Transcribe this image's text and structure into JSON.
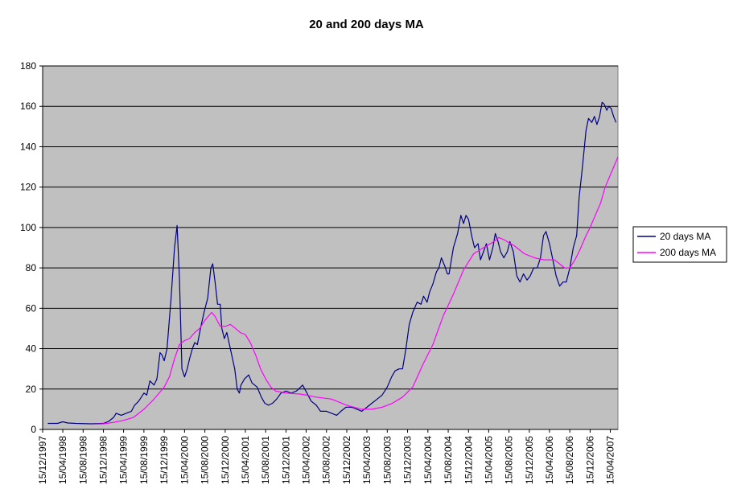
{
  "chart_data": {
    "type": "line",
    "title": "20 and 200 days MA",
    "xlabel": "",
    "ylabel": "",
    "ylim": [
      0,
      180
    ],
    "y_ticks": [
      0,
      20,
      40,
      60,
      80,
      100,
      120,
      140,
      160,
      180
    ],
    "x_tick_labels": [
      "15/12/1997",
      "15/04/1998",
      "15/08/1998",
      "15/12/1998",
      "15/04/1999",
      "15/08/1999",
      "15/12/1999",
      "15/04/2000",
      "15/08/2000",
      "15/12/2000",
      "15/04/2001",
      "15/08/2001",
      "15/12/2001",
      "15/04/2002",
      "15/08/2002",
      "15/12/2002",
      "15/04/2003",
      "15/08/2003",
      "15/12/2003",
      "15/04/2004",
      "15/08/2004",
      "15/12/2004",
      "15/04/2005",
      "15/08/2005",
      "15/12/2005",
      "15/04/2006",
      "15/08/2006",
      "15/12/2006",
      "15/04/2007"
    ],
    "xlim": [
      "1997-12-15",
      "2007-05-31"
    ],
    "grid": true,
    "legend_position": "right",
    "plot_background": "#C0C0C0",
    "series": [
      {
        "name": "20 days MA",
        "color": "#000080",
        "points": [
          [
            "1998-01-15",
            3
          ],
          [
            "1998-03-15",
            3
          ],
          [
            "1998-04-15",
            3.8
          ],
          [
            "1998-05-15",
            3.2
          ],
          [
            "1998-07-01",
            3
          ],
          [
            "1998-10-01",
            2.8
          ],
          [
            "1998-12-15",
            3
          ],
          [
            "1999-01-15",
            4
          ],
          [
            "1999-02-15",
            6
          ],
          [
            "1999-03-01",
            8
          ],
          [
            "1999-04-01",
            7
          ],
          [
            "1999-05-01",
            8
          ],
          [
            "1999-06-01",
            9
          ],
          [
            "1999-06-20",
            12
          ],
          [
            "1999-07-15",
            14
          ],
          [
            "1999-08-15",
            18
          ],
          [
            "1999-09-01",
            17
          ],
          [
            "1999-09-20",
            24
          ],
          [
            "1999-10-15",
            22
          ],
          [
            "1999-11-01",
            25
          ],
          [
            "1999-11-20",
            38
          ],
          [
            "1999-12-01",
            37
          ],
          [
            "1999-12-15",
            34
          ],
          [
            "2000-01-01",
            40
          ],
          [
            "2000-01-25",
            65
          ],
          [
            "2000-02-15",
            90
          ],
          [
            "2000-03-01",
            101
          ],
          [
            "2000-03-15",
            75
          ],
          [
            "2000-03-30",
            30
          ],
          [
            "2000-04-15",
            26
          ],
          [
            "2000-05-01",
            30
          ],
          [
            "2000-05-15",
            35
          ],
          [
            "2000-06-01",
            40
          ],
          [
            "2000-06-15",
            43
          ],
          [
            "2000-07-01",
            42
          ],
          [
            "2000-07-20",
            50
          ],
          [
            "2000-08-10",
            58
          ],
          [
            "2000-09-01",
            65
          ],
          [
            "2000-09-20",
            80
          ],
          [
            "2000-10-01",
            82
          ],
          [
            "2000-10-15",
            73
          ],
          [
            "2000-10-30",
            62
          ],
          [
            "2000-11-15",
            62
          ],
          [
            "2000-11-25",
            50
          ],
          [
            "2000-12-10",
            45
          ],
          [
            "2000-12-25",
            48
          ],
          [
            "2001-01-15",
            40
          ],
          [
            "2001-02-10",
            30
          ],
          [
            "2001-02-25",
            20
          ],
          [
            "2001-03-10",
            18
          ],
          [
            "2001-03-20",
            22
          ],
          [
            "2001-04-10",
            25
          ],
          [
            "2001-05-05",
            27
          ],
          [
            "2001-05-25",
            23
          ],
          [
            "2001-06-25",
            21
          ],
          [
            "2001-07-20",
            16
          ],
          [
            "2001-08-10",
            13
          ],
          [
            "2001-09-01",
            12
          ],
          [
            "2001-09-25",
            13
          ],
          [
            "2001-10-20",
            15
          ],
          [
            "2001-11-15",
            18
          ],
          [
            "2001-12-15",
            19
          ],
          [
            "2002-01-15",
            18
          ],
          [
            "2002-02-15",
            19
          ],
          [
            "2002-03-01",
            20
          ],
          [
            "2002-03-25",
            22
          ],
          [
            "2002-04-20",
            18
          ],
          [
            "2002-05-15",
            14
          ],
          [
            "2002-06-15",
            12
          ],
          [
            "2002-07-10",
            9
          ],
          [
            "2002-08-15",
            9
          ],
          [
            "2002-09-15",
            8
          ],
          [
            "2002-10-15",
            7
          ],
          [
            "2002-11-10",
            9
          ],
          [
            "2002-12-10",
            11
          ],
          [
            "2003-01-15",
            11
          ],
          [
            "2003-02-15",
            10
          ],
          [
            "2003-03-15",
            9
          ],
          [
            "2003-04-15",
            11
          ],
          [
            "2003-05-15",
            13
          ],
          [
            "2003-06-15",
            15
          ],
          [
            "2003-07-15",
            17
          ],
          [
            "2003-08-15",
            21
          ],
          [
            "2003-09-10",
            26
          ],
          [
            "2003-10-01",
            29
          ],
          [
            "2003-10-25",
            30
          ],
          [
            "2003-11-15",
            30
          ],
          [
            "2003-12-05",
            40
          ],
          [
            "2003-12-25",
            52
          ],
          [
            "2004-01-15",
            58
          ],
          [
            "2004-02-10",
            63
          ],
          [
            "2004-03-05",
            62
          ],
          [
            "2004-03-20",
            66
          ],
          [
            "2004-04-10",
            63
          ],
          [
            "2004-04-25",
            68
          ],
          [
            "2004-05-15",
            72
          ],
          [
            "2004-06-05",
            78
          ],
          [
            "2004-06-20",
            80
          ],
          [
            "2004-07-05",
            85
          ],
          [
            "2004-07-25",
            81
          ],
          [
            "2004-08-10",
            77
          ],
          [
            "2004-08-20",
            77
          ],
          [
            "2004-09-15",
            90
          ],
          [
            "2004-10-10",
            97
          ],
          [
            "2004-10-30",
            106
          ],
          [
            "2004-11-15",
            102
          ],
          [
            "2004-11-30",
            106
          ],
          [
            "2004-12-15",
            104
          ],
          [
            "2005-01-05",
            95
          ],
          [
            "2005-01-20",
            90
          ],
          [
            "2005-02-10",
            92
          ],
          [
            "2005-02-25",
            84
          ],
          [
            "2005-03-15",
            88
          ],
          [
            "2005-04-01",
            92
          ],
          [
            "2005-04-20",
            84
          ],
          [
            "2005-05-10",
            90
          ],
          [
            "2005-05-25",
            97
          ],
          [
            "2005-06-10",
            93
          ],
          [
            "2005-06-25",
            88
          ],
          [
            "2005-07-15",
            85
          ],
          [
            "2005-08-05",
            88
          ],
          [
            "2005-08-20",
            93
          ],
          [
            "2005-09-10",
            88
          ],
          [
            "2005-10-01",
            76
          ],
          [
            "2005-10-20",
            73
          ],
          [
            "2005-11-10",
            77
          ],
          [
            "2005-12-01",
            74
          ],
          [
            "2005-12-20",
            76
          ],
          [
            "2006-01-10",
            80
          ],
          [
            "2006-02-01",
            80
          ],
          [
            "2006-02-20",
            85
          ],
          [
            "2006-03-10",
            96
          ],
          [
            "2006-03-25",
            98
          ],
          [
            "2006-04-15",
            92
          ],
          [
            "2006-05-05",
            84
          ],
          [
            "2006-05-25",
            76
          ],
          [
            "2006-06-15",
            71
          ],
          [
            "2006-07-05",
            73
          ],
          [
            "2006-07-25",
            73
          ],
          [
            "2006-08-15",
            80
          ],
          [
            "2006-09-05",
            90
          ],
          [
            "2006-09-25",
            96
          ],
          [
            "2006-10-10",
            115
          ],
          [
            "2006-10-30",
            130
          ],
          [
            "2006-11-20",
            148
          ],
          [
            "2006-12-05",
            154
          ],
          [
            "2006-12-25",
            152
          ],
          [
            "2007-01-10",
            155
          ],
          [
            "2007-01-25",
            151
          ],
          [
            "2007-02-10",
            155
          ],
          [
            "2007-02-25",
            162
          ],
          [
            "2007-03-10",
            161
          ],
          [
            "2007-03-25",
            158
          ],
          [
            "2007-04-05",
            160
          ],
          [
            "2007-04-20",
            159
          ],
          [
            "2007-05-05",
            155
          ],
          [
            "2007-05-20",
            152
          ]
        ]
      },
      {
        "name": "200 days MA",
        "color": "#FF00FF",
        "points": [
          [
            "1998-10-01",
            2.5
          ],
          [
            "1998-12-15",
            2.8
          ],
          [
            "1999-02-15",
            3.5
          ],
          [
            "1999-04-15",
            4.5
          ],
          [
            "1999-06-15",
            6
          ],
          [
            "1999-08-15",
            10
          ],
          [
            "1999-10-15",
            15
          ],
          [
            "1999-12-15",
            21
          ],
          [
            "2000-01-15",
            26
          ],
          [
            "2000-02-15",
            35
          ],
          [
            "2000-03-15",
            42
          ],
          [
            "2000-04-15",
            44
          ],
          [
            "2000-05-15",
            45
          ],
          [
            "2000-06-15",
            48
          ],
          [
            "2000-07-15",
            50
          ],
          [
            "2000-08-15",
            54
          ],
          [
            "2000-09-15",
            57
          ],
          [
            "2000-09-25",
            58
          ],
          [
            "2000-10-15",
            56
          ],
          [
            "2000-11-15",
            51
          ],
          [
            "2000-12-15",
            51
          ],
          [
            "2001-01-15",
            52
          ],
          [
            "2001-02-15",
            50
          ],
          [
            "2001-03-15",
            48
          ],
          [
            "2001-04-15",
            47
          ],
          [
            "2001-05-15",
            43
          ],
          [
            "2001-06-15",
            37
          ],
          [
            "2001-07-15",
            30
          ],
          [
            "2001-08-15",
            25
          ],
          [
            "2001-09-15",
            21
          ],
          [
            "2001-10-15",
            19
          ],
          [
            "2001-11-15",
            18.5
          ],
          [
            "2001-12-15",
            18
          ],
          [
            "2002-03-15",
            17.5
          ],
          [
            "2002-06-15",
            16
          ],
          [
            "2002-09-15",
            15
          ],
          [
            "2002-12-15",
            12
          ],
          [
            "2003-03-15",
            10
          ],
          [
            "2003-05-15",
            10
          ],
          [
            "2003-07-15",
            11
          ],
          [
            "2003-09-15",
            13
          ],
          [
            "2003-11-15",
            16
          ],
          [
            "2004-01-15",
            21
          ],
          [
            "2004-03-15",
            32
          ],
          [
            "2004-05-15",
            42
          ],
          [
            "2004-07-15",
            56
          ],
          [
            "2004-09-15",
            67
          ],
          [
            "2004-11-15",
            79
          ],
          [
            "2005-01-15",
            87
          ],
          [
            "2005-03-15",
            90
          ],
          [
            "2005-05-15",
            93
          ],
          [
            "2005-06-15",
            95
          ],
          [
            "2005-07-15",
            94
          ],
          [
            "2005-09-15",
            91
          ],
          [
            "2005-11-15",
            87
          ],
          [
            "2006-01-15",
            85
          ],
          [
            "2006-03-15",
            84
          ],
          [
            "2006-05-15",
            84
          ],
          [
            "2006-06-15",
            82
          ],
          [
            "2006-07-15",
            80
          ],
          [
            "2006-08-15",
            80
          ],
          [
            "2006-09-15",
            84
          ],
          [
            "2006-10-15",
            89
          ],
          [
            "2006-11-15",
            95
          ],
          [
            "2006-12-15",
            100
          ],
          [
            "2007-01-15",
            106
          ],
          [
            "2007-02-15",
            112
          ],
          [
            "2007-03-15",
            120
          ],
          [
            "2007-04-15",
            126
          ],
          [
            "2007-05-31",
            135
          ]
        ]
      }
    ]
  }
}
